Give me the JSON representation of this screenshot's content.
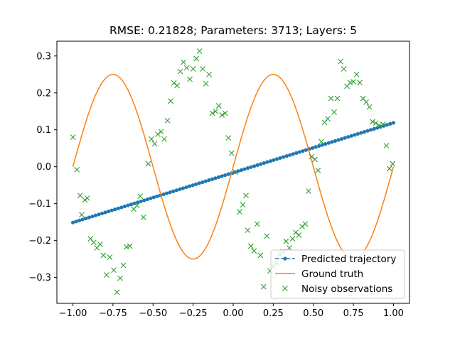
{
  "chart_data": {
    "type": "line",
    "title": "RMSE: 0.21828; Parameters: 3713; Layers: 5",
    "xlabel": "",
    "ylabel": "",
    "xlim": [
      -1.1,
      1.1
    ],
    "ylim": [
      -0.37,
      0.34
    ],
    "x_ticks": [
      -1.0,
      -0.75,
      -0.5,
      -0.25,
      0.0,
      0.25,
      0.5,
      0.75,
      1.0
    ],
    "x_tick_labels": [
      "−1.00",
      "−0.75",
      "−0.50",
      "−0.25",
      "0.00",
      "0.25",
      "0.50",
      "0.75",
      "1.00"
    ],
    "y_ticks": [
      -0.3,
      -0.2,
      -0.1,
      0.0,
      0.1,
      0.2,
      0.3
    ],
    "y_tick_labels": [
      "−0.3",
      "−0.2",
      "−0.1",
      "0.0",
      "0.1",
      "0.2",
      "0.3"
    ],
    "grid": false,
    "legend_position": "bottom-right",
    "series": [
      {
        "name": "Predicted trajectory",
        "style": "dashed-with-dot-markers",
        "color": "#1f77b4",
        "x_range": [
          -1.0,
          1.0
        ],
        "num_points": 100,
        "y_at_x_min": -0.151,
        "y_at_x_max": 0.119
      },
      {
        "name": "Ground truth",
        "style": "solid",
        "color": "#ff7f0e",
        "function": "0.25 * sin(2*pi*x)",
        "x_range": [
          -1.0,
          1.0
        ]
      },
      {
        "name": "Noisy observations",
        "style": "x-markers",
        "color": "#2ca02c",
        "points": [
          [
            -1.0,
            0.08
          ],
          [
            -0.975,
            -0.008
          ],
          [
            -0.955,
            -0.078
          ],
          [
            -0.945,
            -0.13
          ],
          [
            -0.925,
            -0.09
          ],
          [
            -0.91,
            -0.085
          ],
          [
            -0.89,
            -0.195
          ],
          [
            -0.87,
            -0.205
          ],
          [
            -0.85,
            -0.22
          ],
          [
            -0.83,
            -0.21
          ],
          [
            -0.81,
            -0.24
          ],
          [
            -0.79,
            -0.293
          ],
          [
            -0.77,
            -0.245
          ],
          [
            -0.745,
            -0.28
          ],
          [
            -0.725,
            -0.34
          ],
          [
            -0.705,
            -0.302
          ],
          [
            -0.685,
            -0.267
          ],
          [
            -0.665,
            -0.217
          ],
          [
            -0.645,
            -0.215
          ],
          [
            -0.62,
            -0.115
          ],
          [
            -0.6,
            -0.105
          ],
          [
            -0.58,
            -0.08
          ],
          [
            -0.56,
            -0.137
          ],
          [
            -0.53,
            0.008
          ],
          [
            -0.51,
            0.075
          ],
          [
            -0.49,
            0.062
          ],
          [
            -0.47,
            0.088
          ],
          [
            -0.45,
            0.095
          ],
          [
            -0.43,
            0.075
          ],
          [
            -0.41,
            0.125
          ],
          [
            -0.39,
            0.178
          ],
          [
            -0.37,
            0.227
          ],
          [
            -0.35,
            0.22
          ],
          [
            -0.33,
            0.258
          ],
          [
            -0.31,
            0.283
          ],
          [
            -0.29,
            0.268
          ],
          [
            -0.27,
            0.237
          ],
          [
            -0.25,
            0.265
          ],
          [
            -0.23,
            0.293
          ],
          [
            -0.21,
            0.313
          ],
          [
            -0.19,
            0.265
          ],
          [
            -0.17,
            0.225
          ],
          [
            -0.15,
            0.25
          ],
          [
            -0.13,
            0.145
          ],
          [
            -0.11,
            0.15
          ],
          [
            -0.09,
            0.165
          ],
          [
            -0.07,
            0.14
          ],
          [
            -0.05,
            0.145
          ],
          [
            -0.03,
            0.078
          ],
          [
            -0.01,
            0.037
          ],
          [
            0.015,
            -0.015
          ],
          [
            0.04,
            -0.122
          ],
          [
            0.06,
            -0.103
          ],
          [
            0.08,
            -0.078
          ],
          [
            0.09,
            -0.172
          ],
          [
            0.11,
            -0.215
          ],
          [
            0.13,
            -0.228
          ],
          [
            0.15,
            -0.155
          ],
          [
            0.17,
            -0.24
          ],
          [
            0.19,
            -0.325
          ],
          [
            0.21,
            -0.188
          ],
          [
            0.23,
            -0.282
          ],
          [
            0.25,
            -0.27
          ],
          [
            0.27,
            -0.26
          ],
          [
            0.29,
            -0.237
          ],
          [
            0.31,
            -0.23
          ],
          [
            0.33,
            -0.202
          ],
          [
            0.35,
            -0.22
          ],
          [
            0.37,
            -0.195
          ],
          [
            0.39,
            -0.178
          ],
          [
            0.41,
            -0.185
          ],
          [
            0.43,
            -0.162
          ],
          [
            0.45,
            -0.155
          ],
          [
            0.47,
            -0.066
          ],
          [
            0.49,
            0.027
          ],
          [
            0.51,
            0.02
          ],
          [
            0.53,
            -0.01
          ],
          [
            0.55,
            0.068
          ],
          [
            0.57,
            0.12
          ],
          [
            0.59,
            0.13
          ],
          [
            0.61,
            0.185
          ],
          [
            0.63,
            0.148
          ],
          [
            0.65,
            0.185
          ],
          [
            0.67,
            0.285
          ],
          [
            0.69,
            0.265
          ],
          [
            0.71,
            0.218
          ],
          [
            0.73,
            0.228
          ],
          [
            0.75,
            0.23
          ],
          [
            0.77,
            0.25
          ],
          [
            0.79,
            0.228
          ],
          [
            0.81,
            0.185
          ],
          [
            0.83,
            0.175
          ],
          [
            0.85,
            0.162
          ],
          [
            0.87,
            0.122
          ],
          [
            0.89,
            0.118
          ],
          [
            0.91,
            0.112
          ],
          [
            0.935,
            0.115
          ],
          [
            0.955,
            0.057
          ],
          [
            0.975,
            -0.005
          ],
          [
            0.995,
            0.008
          ]
        ]
      }
    ]
  }
}
